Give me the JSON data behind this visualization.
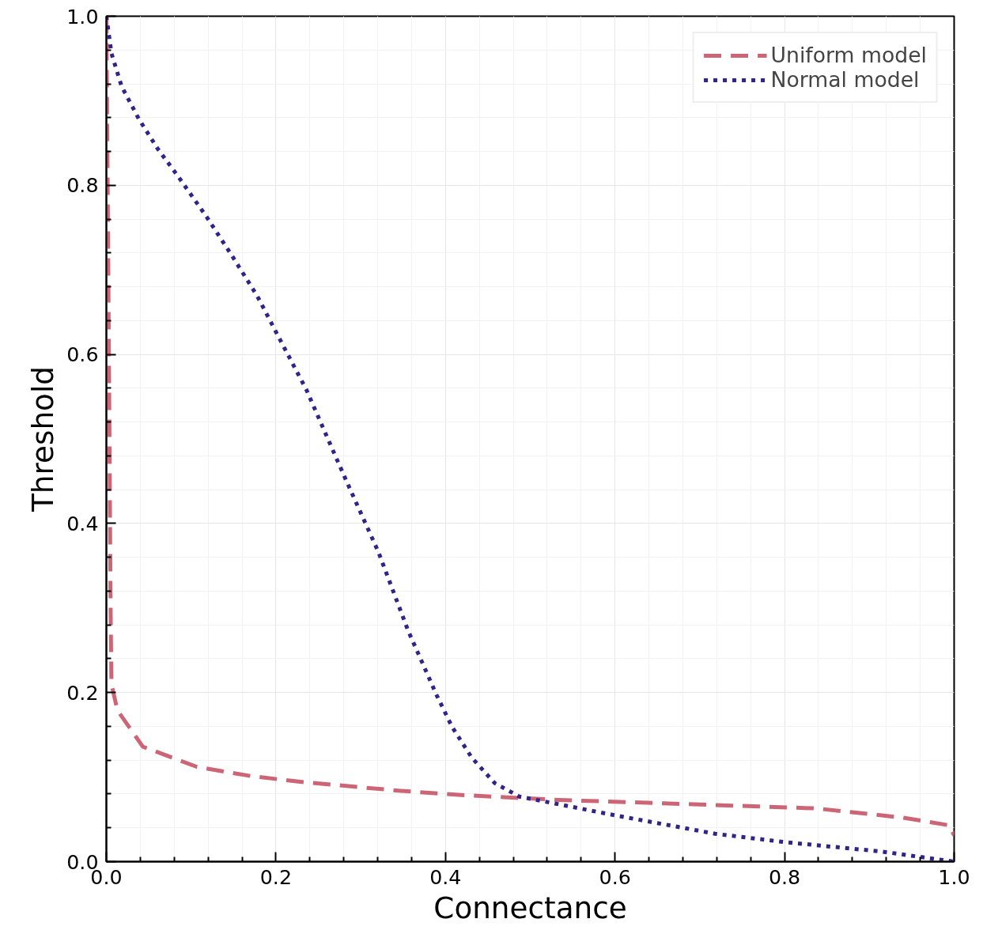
{
  "chart_data": {
    "type": "line",
    "xlabel": "Connectance",
    "ylabel": "Threshold",
    "xlim": [
      0,
      1
    ],
    "ylim": [
      0,
      1
    ],
    "xticks": [
      {
        "value": 0,
        "label": "0.0"
      },
      {
        "value": 0.2,
        "label": "0.2"
      },
      {
        "value": 0.4,
        "label": "0.4"
      },
      {
        "value": 0.6,
        "label": "0.6"
      },
      {
        "value": 0.8,
        "label": "0.8"
      },
      {
        "value": 1,
        "label": "1.0"
      }
    ],
    "yticks": [
      {
        "value": 0,
        "label": "0.0"
      },
      {
        "value": 0.2,
        "label": "0.2"
      },
      {
        "value": 0.4,
        "label": "0.4"
      },
      {
        "value": 0.6,
        "label": "0.6"
      },
      {
        "value": 0.8,
        "label": "0.8"
      },
      {
        "value": 1,
        "label": "1.0"
      }
    ],
    "grid": true,
    "legend": "top right",
    "series": [
      {
        "name": "Uniform model",
        "color": "#cc6677",
        "line_style": "dashed",
        "x": [
          0.0,
          0.003,
          0.005,
          0.006,
          0.013,
          0.043,
          0.107,
          0.172,
          0.233,
          0.344,
          0.415,
          0.533,
          0.657,
          0.837,
          0.94,
          0.994,
          1.0
        ],
        "values": [
          1.0,
          0.6,
          0.3,
          0.21,
          0.179,
          0.136,
          0.112,
          0.101,
          0.094,
          0.084,
          0.079,
          0.073,
          0.069,
          0.063,
          0.052,
          0.043,
          0.031
        ]
      },
      {
        "name": "Normal model",
        "color": "#332288",
        "line_style": "dotted",
        "x": [
          0.0,
          0.006,
          0.018,
          0.038,
          0.06,
          0.085,
          0.118,
          0.148,
          0.178,
          0.204,
          0.236,
          0.281,
          0.321,
          0.356,
          0.39,
          0.408,
          0.431,
          0.458,
          0.487,
          0.599,
          0.718,
          0.801,
          0.914,
          1.0
        ],
        "values": [
          1.0,
          0.956,
          0.917,
          0.879,
          0.844,
          0.81,
          0.763,
          0.717,
          0.669,
          0.619,
          0.558,
          0.455,
          0.366,
          0.273,
          0.196,
          0.159,
          0.123,
          0.093,
          0.077,
          0.055,
          0.033,
          0.023,
          0.012,
          0.0
        ]
      }
    ]
  }
}
